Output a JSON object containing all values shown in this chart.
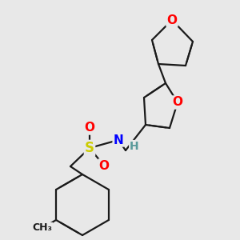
{
  "bg_color": "#e8e8e8",
  "bond_color": "#1a1a1a",
  "bond_width": 1.6,
  "dbo": 0.018,
  "atom_colors": {
    "O": "#ff0000",
    "N": "#0000ff",
    "S": "#cccc00",
    "H": "#5a9a9a"
  },
  "font_size": 10,
  "fig_size": [
    3.0,
    3.0
  ],
  "dpi": 100
}
